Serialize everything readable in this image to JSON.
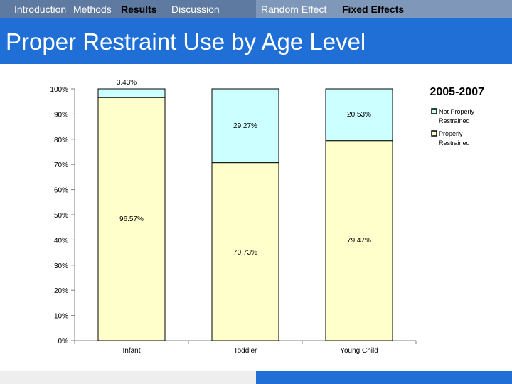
{
  "nav": {
    "introduction": "Introduction",
    "methods": "Methods",
    "results": "Results",
    "discussion": "Discussion",
    "random_effect": "Random Effect",
    "fixed_effects": "Fixed Effects"
  },
  "slide": {
    "title": "Proper Restraint Use by Age Level"
  },
  "colors": {
    "properly": "#ffffcc",
    "not_properly": "#ccffff",
    "stroke": "#000000"
  },
  "chart_data": {
    "type": "bar",
    "stacked": true,
    "title": "2005-2007",
    "categories": [
      "Infant",
      "Toddler",
      "Young Child"
    ],
    "series": [
      {
        "name": "Properly Restrained",
        "values": [
          96.57,
          70.73,
          79.47
        ],
        "labels": [
          "96.57%",
          "70.73%",
          "79.47%"
        ]
      },
      {
        "name": "Not Properly Restrained",
        "values": [
          3.43,
          29.27,
          20.53
        ],
        "labels": [
          "3.43%",
          "29.27%",
          "20.53%"
        ]
      }
    ],
    "ylim": [
      0,
      100
    ],
    "yticks": [
      "0%",
      "10%",
      "20%",
      "30%",
      "40%",
      "50%",
      "60%",
      "70%",
      "80%",
      "90%",
      "100%"
    ],
    "legend": {
      "position": "right",
      "entries": [
        {
          "line1": "Not Properly",
          "line2": "Restrained"
        },
        {
          "line1": "Properly",
          "line2": "Restrained"
        }
      ]
    },
    "grid": false
  }
}
